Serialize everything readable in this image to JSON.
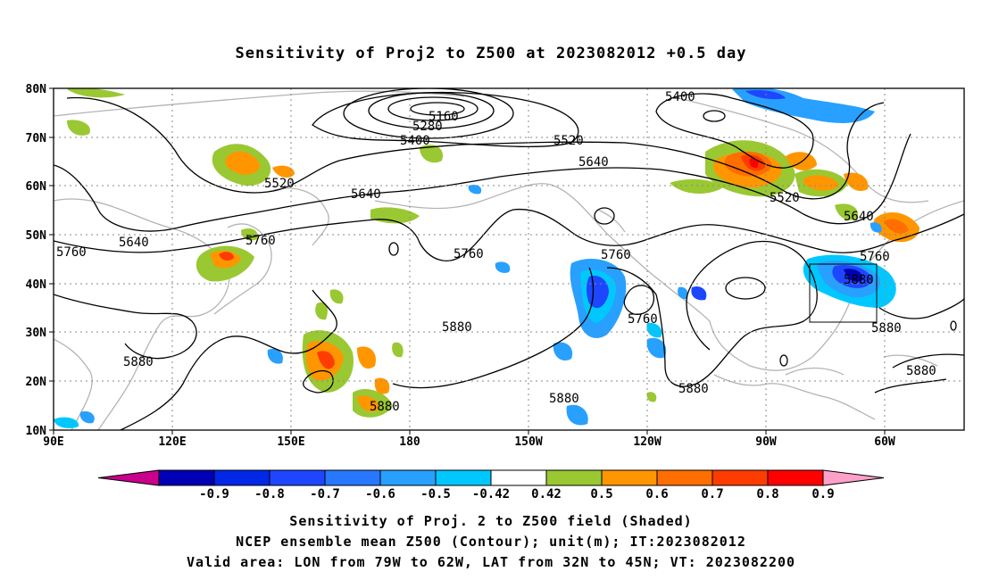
{
  "title": "Sensitivity of Proj2 to Z500 at 2023082012 +0.5 day",
  "lat_labels": [
    "80N",
    "70N",
    "60N",
    "50N",
    "40N",
    "30N",
    "20N",
    "10N"
  ],
  "lon_labels": [
    "90E",
    "120E",
    "150E",
    "180",
    "150W",
    "120W",
    "90W",
    "60W"
  ],
  "contour_labels": [
    {
      "text": "5160"
    },
    {
      "text": "5280"
    },
    {
      "text": "5400"
    },
    {
      "text": "5400"
    },
    {
      "text": "5520"
    },
    {
      "text": "5520"
    },
    {
      "text": "5520"
    },
    {
      "text": "5640"
    },
    {
      "text": "5640"
    },
    {
      "text": "5640"
    },
    {
      "text": "5640"
    },
    {
      "text": "5760"
    },
    {
      "text": "5760"
    },
    {
      "text": "5760"
    },
    {
      "text": "5760"
    },
    {
      "text": "5760"
    },
    {
      "text": "5760"
    },
    {
      "text": "5880"
    },
    {
      "text": "5880"
    },
    {
      "text": "5880"
    },
    {
      "text": "5880"
    },
    {
      "text": "5880"
    },
    {
      "text": "5880"
    },
    {
      "text": "5880"
    },
    {
      "text": "5880"
    }
  ],
  "colorbar": {
    "colors": [
      "#c8008c",
      "#0000b4",
      "#0028e6",
      "#1e46ff",
      "#2878ff",
      "#28a0ff",
      "#00c8ff",
      "#ffffff",
      "#9ac832",
      "#ff9600",
      "#ff6e00",
      "#ff3c00",
      "#ff0000",
      "#ffa0c8"
    ],
    "labels": [
      "-0.9",
      "-0.8",
      "-0.7",
      "-0.6",
      "-0.5",
      "-0.42",
      "0.42",
      "0.5",
      "0.6",
      "0.7",
      "0.8",
      "0.9"
    ]
  },
  "captions": [
    "Sensitivity of Proj. 2 to Z500 field (Shaded)",
    "NCEP ensemble mean Z500 (Contour); unit(m); IT:2023082012",
    "Valid area: LON from 79W to 62W, LAT from 32N to 45N; VT: 2023082200"
  ]
}
